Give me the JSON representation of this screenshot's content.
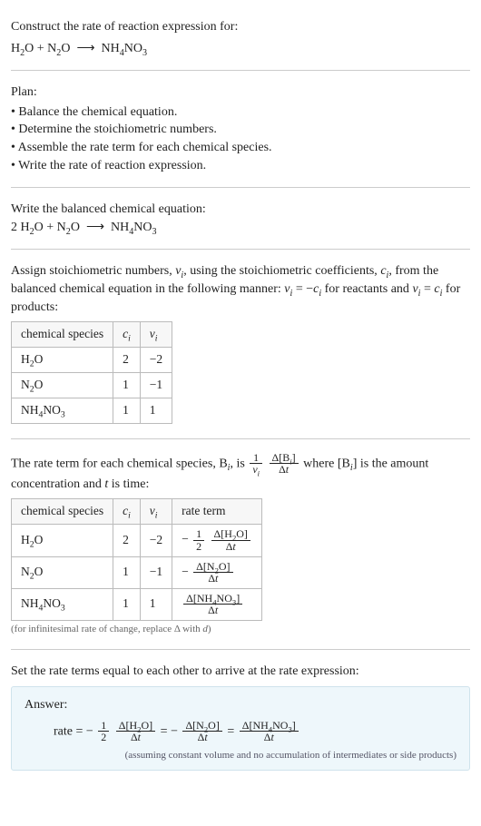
{
  "intro": {
    "line1": "Construct the rate of reaction expression for:",
    "unbalanced_html": "H<sub>2</sub>O + N<sub>2</sub>O &nbsp;⟶&nbsp; NH<sub>4</sub>NO<sub>3</sub>"
  },
  "plan": {
    "title": "Plan:",
    "items": [
      "Balance the chemical equation.",
      "Determine the stoichiometric numbers.",
      "Assemble the rate term for each chemical species.",
      "Write the rate of reaction expression."
    ]
  },
  "balanced": {
    "title": "Write the balanced chemical equation:",
    "equation_html": "2 H<sub>2</sub>O + N<sub>2</sub>O &nbsp;⟶&nbsp; NH<sub>4</sub>NO<sub>3</sub>"
  },
  "stoich": {
    "intro_html": "Assign stoichiometric numbers, <span class=\"ital\">ν<sub>i</sub></span>, using the stoichiometric coefficients, <span class=\"ital\">c<sub>i</sub></span>, from the balanced chemical equation in the following manner: <span class=\"ital\">ν<sub>i</sub></span> = −<span class=\"ital\">c<sub>i</sub></span> for reactants and <span class=\"ital\">ν<sub>i</sub></span> = <span class=\"ital\">c<sub>i</sub></span> for products:",
    "headers": {
      "species": "chemical species",
      "ci_html": "<span class=\"ital\">c<sub>i</sub></span>",
      "vi_html": "<span class=\"ital\">ν<sub>i</sub></span>"
    },
    "rows": [
      {
        "species_html": "H<sub>2</sub>O",
        "ci": "2",
        "vi": "−2"
      },
      {
        "species_html": "N<sub>2</sub>O",
        "ci": "1",
        "vi": "−1"
      },
      {
        "species_html": "NH<sub>4</sub>NO<sub>3</sub>",
        "ci": "1",
        "vi": "1"
      }
    ]
  },
  "rateterm": {
    "intro_pre": "The rate term for each chemical species, B",
    "intro_mid1": ", is ",
    "intro_mid2": " where [B",
    "intro_post": "] is the amount concentration and ",
    "t_label": "t",
    "intro_end": " is time:",
    "generic_frac1": {
      "num": "1",
      "den_html": "<span class=\"ital\">ν<sub>i</sub></span>"
    },
    "generic_frac2": {
      "num_html": "Δ[B<sub><span class=\"ital\">i</span></sub>]",
      "den_html": "Δ<span class=\"ital\">t</span>"
    },
    "headers": {
      "species": "chemical species",
      "ci_html": "<span class=\"ital\">c<sub>i</sub></span>",
      "vi_html": "<span class=\"ital\">ν<sub>i</sub></span>",
      "rate": "rate term"
    },
    "rows": [
      {
        "species_html": "H<sub>2</sub>O",
        "ci": "2",
        "vi": "−2",
        "rate_prefix": "−",
        "rate_f1": {
          "num": "1",
          "den": "2"
        },
        "rate_f2": {
          "num_html": "Δ[H<sub>2</sub>O]",
          "den_html": "Δ<span class=\"ital\">t</span>"
        }
      },
      {
        "species_html": "N<sub>2</sub>O",
        "ci": "1",
        "vi": "−1",
        "rate_prefix": "−",
        "rate_f1": null,
        "rate_f2": {
          "num_html": "Δ[N<sub>2</sub>O]",
          "den_html": "Δ<span class=\"ital\">t</span>"
        }
      },
      {
        "species_html": "NH<sub>4</sub>NO<sub>3</sub>",
        "ci": "1",
        "vi": "1",
        "rate_prefix": "",
        "rate_f1": null,
        "rate_f2": {
          "num_html": "Δ[NH<sub>4</sub>NO<sub>3</sub>]",
          "den_html": "Δ<span class=\"ital\">t</span>"
        }
      }
    ],
    "footnote_html": "(for infinitesimal rate of change, replace Δ with <span class=\"ital\">d</span>)"
  },
  "final": {
    "title": "Set the rate terms equal to each other to arrive at the rate expression:",
    "answer_label": "Answer:",
    "rate_label": "rate = ",
    "neg": "−",
    "eq": " = ",
    "f_half": {
      "num": "1",
      "den": "2"
    },
    "f_h2o": {
      "num_html": "Δ[H<sub>2</sub>O]",
      "den_html": "Δ<span class=\"ital\">t</span>"
    },
    "f_n2o": {
      "num_html": "Δ[N<sub>2</sub>O]",
      "den_html": "Δ<span class=\"ital\">t</span>"
    },
    "f_nh4": {
      "num_html": "Δ[NH<sub>4</sub>NO<sub>3</sub>]",
      "den_html": "Δ<span class=\"ital\">t</span>"
    },
    "assume": "(assuming constant volume and no accumulation of intermediates or side products)"
  },
  "colors": {
    "answer_bg": "#eef7fb",
    "answer_border": "#cfe3ec",
    "rule": "#cccccc",
    "table_border": "#bbbbbb"
  }
}
